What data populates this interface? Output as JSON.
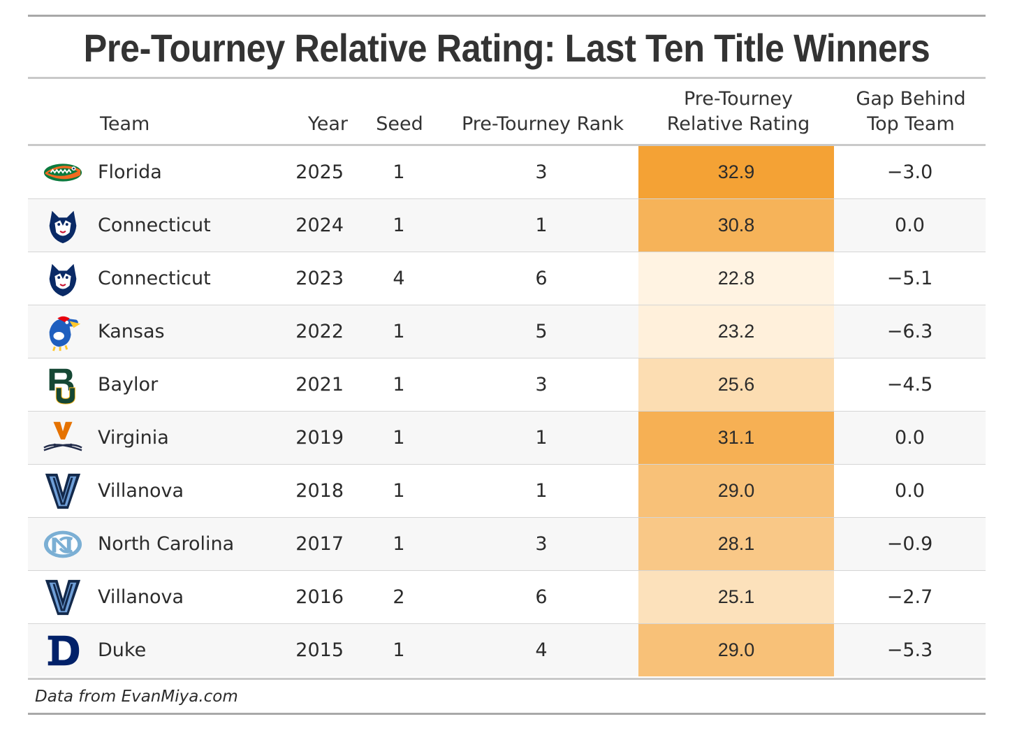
{
  "title": "Pre-Tourney Relative Rating: Last Ten Title Winners",
  "headers": {
    "team": "Team",
    "year": "Year",
    "seed": "Seed",
    "rank": "Pre-Tourney Rank",
    "rating_line1": "Pre-Tourney",
    "rating_line2": "Relative Rating",
    "gap_line1": "Gap Behind",
    "gap_line2": "Top Team"
  },
  "colors": {
    "rating_low": "#fff3e2",
    "rating_high": "#f4a235",
    "rule": "#a8a8a8"
  },
  "rows": [
    {
      "logo": "florida-gator-icon",
      "team": "Florida",
      "year": "2025",
      "seed": "1",
      "rank": "3",
      "rating": "32.9",
      "gap": "−3.0"
    },
    {
      "logo": "uconn-husky-icon",
      "team": "Connecticut",
      "year": "2024",
      "seed": "1",
      "rank": "1",
      "rating": "30.8",
      "gap": "0.0"
    },
    {
      "logo": "uconn-husky-icon",
      "team": "Connecticut",
      "year": "2023",
      "seed": "4",
      "rank": "6",
      "rating": "22.8",
      "gap": "−5.1"
    },
    {
      "logo": "kansas-jayhawk-icon",
      "team": "Kansas",
      "year": "2022",
      "seed": "1",
      "rank": "5",
      "rating": "23.2",
      "gap": "−6.3"
    },
    {
      "logo": "baylor-bu-icon",
      "team": "Baylor",
      "year": "2021",
      "seed": "1",
      "rank": "3",
      "rating": "25.6",
      "gap": "−4.5"
    },
    {
      "logo": "virginia-sabres-icon",
      "team": "Virginia",
      "year": "2019",
      "seed": "1",
      "rank": "1",
      "rating": "31.1",
      "gap": "0.0"
    },
    {
      "logo": "villanova-v-icon",
      "team": "Villanova",
      "year": "2018",
      "seed": "1",
      "rank": "1",
      "rating": "29.0",
      "gap": "0.0"
    },
    {
      "logo": "unc-nc-icon",
      "team": "North Carolina",
      "year": "2017",
      "seed": "1",
      "rank": "3",
      "rating": "28.1",
      "gap": "−0.9"
    },
    {
      "logo": "villanova-v-icon",
      "team": "Villanova",
      "year": "2016",
      "seed": "2",
      "rank": "6",
      "rating": "25.1",
      "gap": "−2.7"
    },
    {
      "logo": "duke-d-icon",
      "team": "Duke",
      "year": "2015",
      "seed": "1",
      "rank": "4",
      "rating": "29.0",
      "gap": "−5.3"
    }
  ],
  "chart_data": {
    "type": "table",
    "title": "Pre-Tourney Relative Rating: Last Ten Title Winners",
    "columns": [
      "Team",
      "Year",
      "Seed",
      "Pre-Tourney Rank",
      "Pre-Tourney Relative Rating",
      "Gap Behind Top Team"
    ],
    "values": [
      [
        "Florida",
        2025,
        1,
        3,
        32.9,
        -3.0
      ],
      [
        "Connecticut",
        2024,
        1,
        1,
        30.8,
        0.0
      ],
      [
        "Connecticut",
        2023,
        4,
        6,
        22.8,
        -5.1
      ],
      [
        "Kansas",
        2022,
        1,
        5,
        23.2,
        -6.3
      ],
      [
        "Baylor",
        2021,
        1,
        3,
        25.6,
        -4.5
      ],
      [
        "Virginia",
        2019,
        1,
        1,
        31.1,
        0.0
      ],
      [
        "Villanova",
        2018,
        1,
        1,
        29.0,
        0.0
      ],
      [
        "North Carolina",
        2017,
        1,
        3,
        28.1,
        -0.9
      ],
      [
        "Villanova",
        2016,
        2,
        6,
        25.1,
        -2.7
      ],
      [
        "Duke",
        2015,
        1,
        4,
        29.0,
        -5.3
      ]
    ],
    "color_scale_column": "Pre-Tourney Relative Rating"
  },
  "footnote": "Data from EvanMiya.com"
}
